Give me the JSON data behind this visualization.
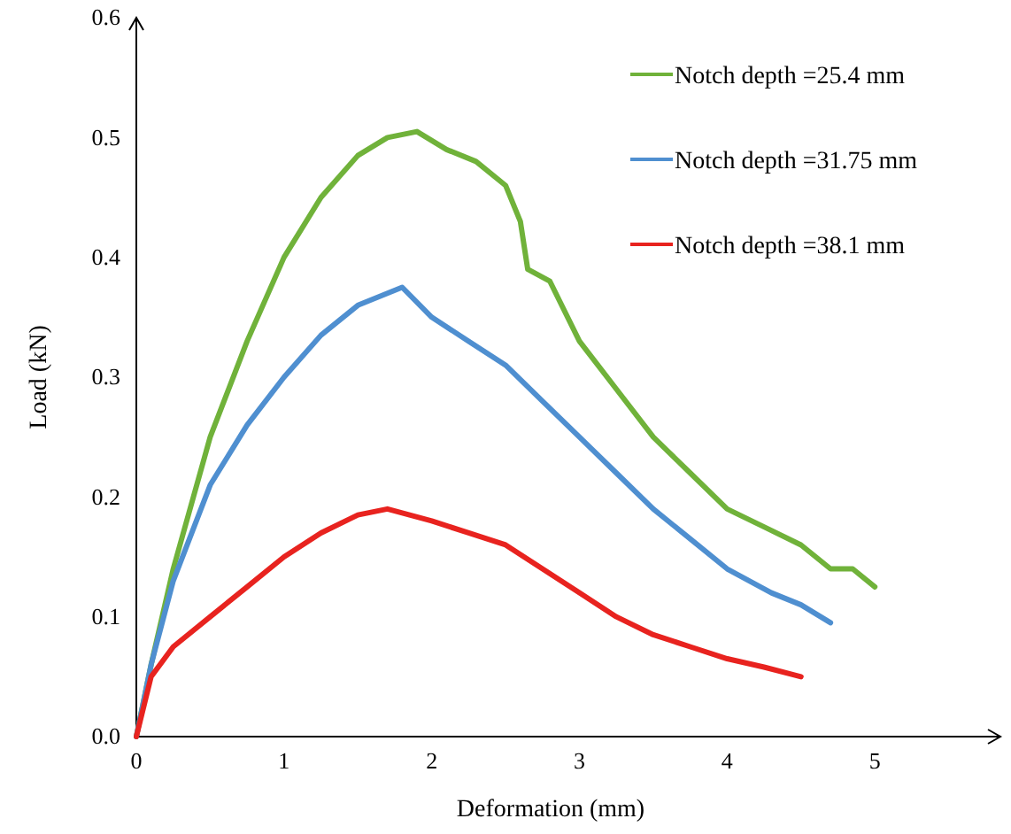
{
  "chart_data": {
    "type": "line",
    "xlabel": "Deformation  (mm)",
    "ylabel": "Load (kN)",
    "xlim": [
      0,
      5.85
    ],
    "xticks": [
      0,
      1,
      2,
      3,
      4,
      5
    ],
    "ylim": [
      0,
      0.6
    ],
    "yticks": [
      {
        "value": 0,
        "label": "0.0"
      },
      {
        "value": 0.1,
        "label": "0.1"
      },
      {
        "value": 0.2,
        "label": "0.2"
      },
      {
        "value": 0.3,
        "label": "0.3"
      },
      {
        "value": 0.4,
        "label": "0.4"
      },
      {
        "value": 0.5,
        "label": "0.5"
      },
      {
        "value": 0.6,
        "label": "0.6"
      }
    ],
    "grid": false,
    "legend": "top right",
    "marker": "none",
    "line_style": "solid",
    "series": [
      {
        "name": "Notch depth =25.4 mm",
        "color": "#70b23a",
        "x": [
          0,
          0.1,
          0.25,
          0.5,
          0.75,
          1,
          1.25,
          1.5,
          1.7,
          1.9,
          2.1,
          2.3,
          2.5,
          2.6,
          2.65,
          2.8,
          3,
          3.25,
          3.5,
          3.75,
          4,
          4.25,
          4.5,
          4.7,
          4.85,
          5
        ],
        "values": [
          0,
          0.06,
          0.14,
          0.25,
          0.33,
          0.4,
          0.45,
          0.485,
          0.5,
          0.505,
          0.49,
          0.48,
          0.46,
          0.43,
          0.39,
          0.38,
          0.33,
          0.29,
          0.25,
          0.22,
          0.19,
          0.175,
          0.16,
          0.14,
          0.14,
          0.125
        ]
      },
      {
        "name": "Notch depth =31.75 mm",
        "color": "#4f8fd0",
        "x": [
          0,
          0.1,
          0.25,
          0.5,
          0.75,
          1,
          1.25,
          1.5,
          1.8,
          2,
          2.25,
          2.5,
          2.75,
          3,
          3.25,
          3.5,
          3.75,
          4,
          4.3,
          4.5,
          4.7
        ],
        "values": [
          0,
          0.06,
          0.13,
          0.21,
          0.26,
          0.3,
          0.335,
          0.36,
          0.375,
          0.35,
          0.33,
          0.31,
          0.28,
          0.25,
          0.22,
          0.19,
          0.165,
          0.14,
          0.12,
          0.11,
          0.095
        ]
      },
      {
        "name": "Notch depth =38.1 mm",
        "color": "#e8231f",
        "x": [
          0,
          0.1,
          0.25,
          0.5,
          0.75,
          1,
          1.25,
          1.5,
          1.7,
          2,
          2.25,
          2.5,
          2.75,
          3,
          3.25,
          3.5,
          3.75,
          4,
          4.25,
          4.5
        ],
        "values": [
          0,
          0.05,
          0.075,
          0.1,
          0.125,
          0.15,
          0.17,
          0.185,
          0.19,
          0.18,
          0.17,
          0.16,
          0.14,
          0.12,
          0.1,
          0.085,
          0.075,
          0.065,
          0.058,
          0.05
        ]
      }
    ]
  }
}
